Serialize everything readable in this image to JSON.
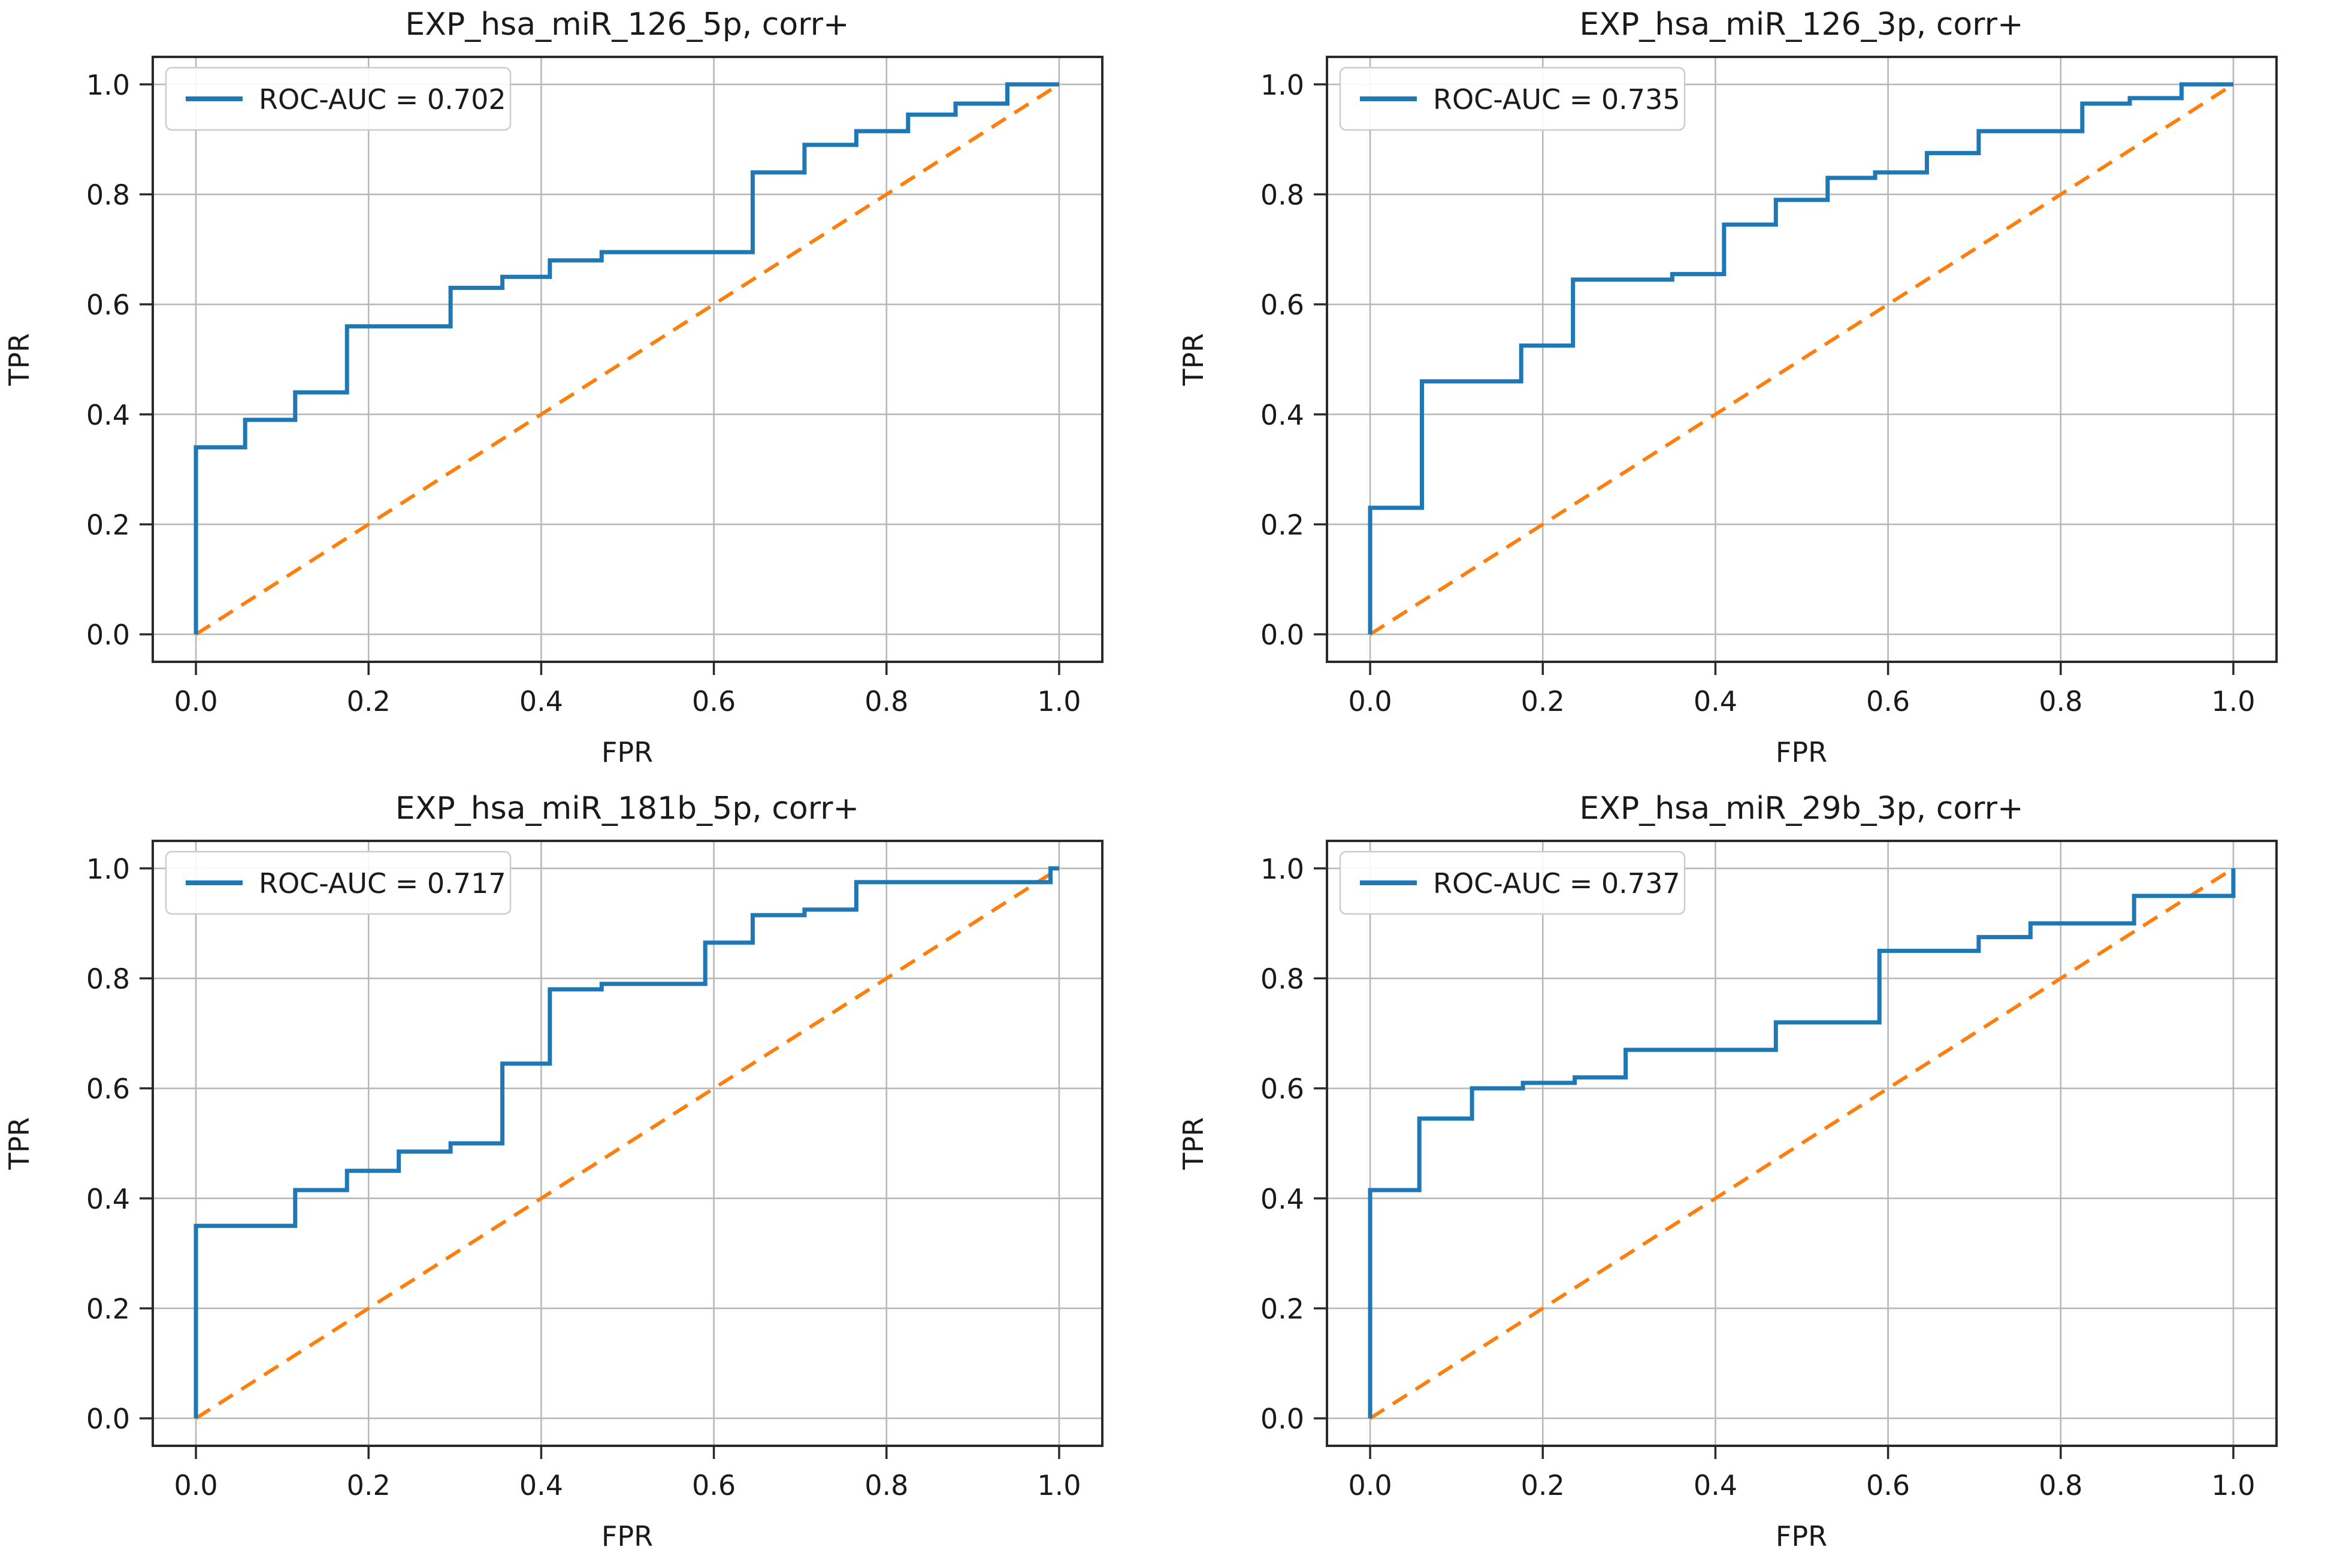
{
  "page": {
    "background": "#ffffff",
    "layout": "2x2 grid of ROC curve subplots"
  },
  "colors": {
    "roc_line": "#1f77b4",
    "chance_line": "#ff7f0e",
    "grid": "#b8b8b8",
    "spine": "#2a2a2a",
    "text": "#1a1a1a"
  },
  "chart_data": [
    {
      "type": "line",
      "subtype": "roc-step-curve",
      "title": "EXP_hsa_miR_126_5p, corr+",
      "xlabel": "FPR",
      "ylabel": "TPR",
      "xlim": [
        -0.05,
        1.05
      ],
      "ylim": [
        -0.05,
        1.05
      ],
      "x_ticks": [
        "0.0",
        "0.2",
        "0.4",
        "0.6",
        "0.8",
        "1.0"
      ],
      "y_ticks": [
        "0.0",
        "0.2",
        "0.4",
        "0.6",
        "0.8",
        "1.0"
      ],
      "grid": true,
      "auc": 0.702,
      "legend": {
        "label": "ROC-AUC = 0.702",
        "position": "upper left"
      },
      "series": [
        {
          "name": "ROC curve",
          "color": "#1f77b4",
          "style": "solid",
          "width": 7,
          "points": [
            [
              0,
              0
            ],
            [
              0,
              0.34
            ],
            [
              0.057,
              0.34
            ],
            [
              0.057,
              0.39
            ],
            [
              0.115,
              0.39
            ],
            [
              0.115,
              0.44
            ],
            [
              0.175,
              0.44
            ],
            [
              0.175,
              0.56
            ],
            [
              0.295,
              0.56
            ],
            [
              0.295,
              0.63
            ],
            [
              0.355,
              0.63
            ],
            [
              0.355,
              0.65
            ],
            [
              0.41,
              0.65
            ],
            [
              0.41,
              0.68
            ],
            [
              0.47,
              0.68
            ],
            [
              0.47,
              0.695
            ],
            [
              0.645,
              0.695
            ],
            [
              0.645,
              0.84
            ],
            [
              0.705,
              0.84
            ],
            [
              0.705,
              0.89
            ],
            [
              0.765,
              0.89
            ],
            [
              0.765,
              0.915
            ],
            [
              0.825,
              0.915
            ],
            [
              0.825,
              0.945
            ],
            [
              0.88,
              0.945
            ],
            [
              0.88,
              0.965
            ],
            [
              0.94,
              0.965
            ],
            [
              0.94,
              1.0
            ],
            [
              1.0,
              1.0
            ]
          ]
        },
        {
          "name": "chance diagonal",
          "color": "#ff7f0e",
          "style": "dashed",
          "width": 6,
          "points": [
            [
              0,
              0
            ],
            [
              1,
              1
            ]
          ]
        }
      ]
    },
    {
      "type": "line",
      "subtype": "roc-step-curve",
      "title": "EXP_hsa_miR_126_3p, corr+",
      "xlabel": "FPR",
      "ylabel": "TPR",
      "xlim": [
        -0.05,
        1.05
      ],
      "ylim": [
        -0.05,
        1.05
      ],
      "x_ticks": [
        "0.0",
        "0.2",
        "0.4",
        "0.6",
        "0.8",
        "1.0"
      ],
      "y_ticks": [
        "0.0",
        "0.2",
        "0.4",
        "0.6",
        "0.8",
        "1.0"
      ],
      "grid": true,
      "auc": 0.735,
      "legend": {
        "label": "ROC-AUC = 0.735",
        "position": "upper left"
      },
      "series": [
        {
          "name": "ROC curve",
          "color": "#1f77b4",
          "style": "solid",
          "width": 7,
          "points": [
            [
              0,
              0
            ],
            [
              0,
              0.23
            ],
            [
              0.06,
              0.23
            ],
            [
              0.06,
              0.46
            ],
            [
              0.175,
              0.46
            ],
            [
              0.175,
              0.525
            ],
            [
              0.235,
              0.525
            ],
            [
              0.235,
              0.645
            ],
            [
              0.35,
              0.645
            ],
            [
              0.35,
              0.655
            ],
            [
              0.41,
              0.655
            ],
            [
              0.41,
              0.745
            ],
            [
              0.47,
              0.745
            ],
            [
              0.47,
              0.79
            ],
            [
              0.53,
              0.79
            ],
            [
              0.53,
              0.83
            ],
            [
              0.585,
              0.83
            ],
            [
              0.585,
              0.84
            ],
            [
              0.645,
              0.84
            ],
            [
              0.645,
              0.875
            ],
            [
              0.705,
              0.875
            ],
            [
              0.705,
              0.915
            ],
            [
              0.825,
              0.915
            ],
            [
              0.825,
              0.965
            ],
            [
              0.88,
              0.965
            ],
            [
              0.88,
              0.975
            ],
            [
              0.94,
              0.975
            ],
            [
              0.94,
              1.0
            ],
            [
              1.0,
              1.0
            ]
          ]
        },
        {
          "name": "chance diagonal",
          "color": "#ff7f0e",
          "style": "dashed",
          "width": 6,
          "points": [
            [
              0,
              0
            ],
            [
              1,
              1
            ]
          ]
        }
      ]
    },
    {
      "type": "line",
      "subtype": "roc-step-curve",
      "title": "EXP_hsa_miR_181b_5p, corr+",
      "xlabel": "FPR",
      "ylabel": "TPR",
      "xlim": [
        -0.05,
        1.05
      ],
      "ylim": [
        -0.05,
        1.05
      ],
      "x_ticks": [
        "0.0",
        "0.2",
        "0.4",
        "0.6",
        "0.8",
        "1.0"
      ],
      "y_ticks": [
        "0.0",
        "0.2",
        "0.4",
        "0.6",
        "0.8",
        "1.0"
      ],
      "grid": true,
      "auc": 0.717,
      "legend": {
        "label": "ROC-AUC = 0.717",
        "position": "upper left"
      },
      "series": [
        {
          "name": "ROC curve",
          "color": "#1f77b4",
          "style": "solid",
          "width": 7,
          "points": [
            [
              0,
              0
            ],
            [
              0,
              0.35
            ],
            [
              0.115,
              0.35
            ],
            [
              0.115,
              0.415
            ],
            [
              0.175,
              0.415
            ],
            [
              0.175,
              0.45
            ],
            [
              0.235,
              0.45
            ],
            [
              0.235,
              0.485
            ],
            [
              0.295,
              0.485
            ],
            [
              0.295,
              0.5
            ],
            [
              0.355,
              0.5
            ],
            [
              0.355,
              0.645
            ],
            [
              0.41,
              0.645
            ],
            [
              0.41,
              0.78
            ],
            [
              0.47,
              0.78
            ],
            [
              0.47,
              0.79
            ],
            [
              0.59,
              0.79
            ],
            [
              0.59,
              0.865
            ],
            [
              0.645,
              0.865
            ],
            [
              0.645,
              0.915
            ],
            [
              0.705,
              0.915
            ],
            [
              0.705,
              0.925
            ],
            [
              0.765,
              0.925
            ],
            [
              0.765,
              0.975
            ],
            [
              0.99,
              0.975
            ],
            [
              0.99,
              1.0
            ],
            [
              1.0,
              1.0
            ]
          ]
        },
        {
          "name": "chance diagonal",
          "color": "#ff7f0e",
          "style": "dashed",
          "width": 6,
          "points": [
            [
              0,
              0
            ],
            [
              1,
              1
            ]
          ]
        }
      ]
    },
    {
      "type": "line",
      "subtype": "roc-step-curve",
      "title": "EXP_hsa_miR_29b_3p, corr+",
      "xlabel": "FPR",
      "ylabel": "TPR",
      "xlim": [
        -0.05,
        1.05
      ],
      "ylim": [
        -0.05,
        1.05
      ],
      "x_ticks": [
        "0.0",
        "0.2",
        "0.4",
        "0.6",
        "0.8",
        "1.0"
      ],
      "y_ticks": [
        "0.0",
        "0.2",
        "0.4",
        "0.6",
        "0.8",
        "1.0"
      ],
      "grid": true,
      "auc": 0.737,
      "legend": {
        "label": "ROC-AUC = 0.737",
        "position": "upper left"
      },
      "series": [
        {
          "name": "ROC curve",
          "color": "#1f77b4",
          "style": "solid",
          "width": 7,
          "points": [
            [
              0,
              0
            ],
            [
              0,
              0.415
            ],
            [
              0.057,
              0.415
            ],
            [
              0.057,
              0.545
            ],
            [
              0.118,
              0.545
            ],
            [
              0.118,
              0.6
            ],
            [
              0.177,
              0.6
            ],
            [
              0.177,
              0.61
            ],
            [
              0.237,
              0.61
            ],
            [
              0.237,
              0.62
            ],
            [
              0.296,
              0.62
            ],
            [
              0.296,
              0.67
            ],
            [
              0.47,
              0.67
            ],
            [
              0.47,
              0.72
            ],
            [
              0.59,
              0.72
            ],
            [
              0.59,
              0.85
            ],
            [
              0.705,
              0.85
            ],
            [
              0.705,
              0.875
            ],
            [
              0.765,
              0.875
            ],
            [
              0.765,
              0.9
            ],
            [
              0.885,
              0.9
            ],
            [
              0.885,
              0.95
            ],
            [
              1.0,
              0.95
            ],
            [
              1.0,
              1.0
            ]
          ]
        },
        {
          "name": "chance diagonal",
          "color": "#ff7f0e",
          "style": "dashed",
          "width": 6,
          "points": [
            [
              0,
              0
            ],
            [
              1,
              1
            ]
          ]
        }
      ]
    }
  ]
}
